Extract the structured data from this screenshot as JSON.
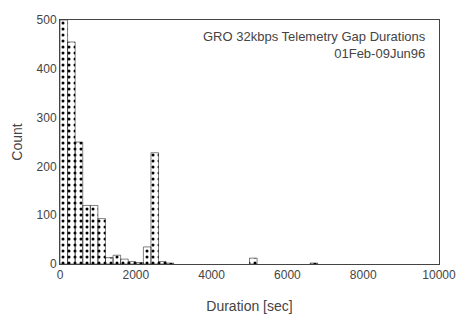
{
  "chart_data": {
    "type": "bar",
    "title": "GRO 32kbps Telemetry Gap Durations",
    "subtitle": "01Feb-09Jun96",
    "xlabel": "Duration [sec]",
    "ylabel": "Count",
    "x": [
      0,
      200,
      400,
      600,
      800,
      1000,
      1200,
      1400,
      1600,
      1800,
      2000,
      2200,
      2400,
      2600,
      2800,
      5000,
      6600
    ],
    "bin_width": 200,
    "values": [
      500,
      455,
      250,
      120,
      120,
      93,
      13,
      18,
      10,
      5,
      3,
      35,
      228,
      5,
      2,
      12,
      2
    ],
    "color": "#c8c8c8",
    "xlim": [
      0,
      10000
    ],
    "ylim": [
      0,
      500
    ],
    "xticks": [
      0,
      2000,
      4000,
      6000,
      8000,
      10000
    ],
    "yticks": [
      0,
      100,
      200,
      300,
      400,
      500
    ],
    "grid": false
  }
}
